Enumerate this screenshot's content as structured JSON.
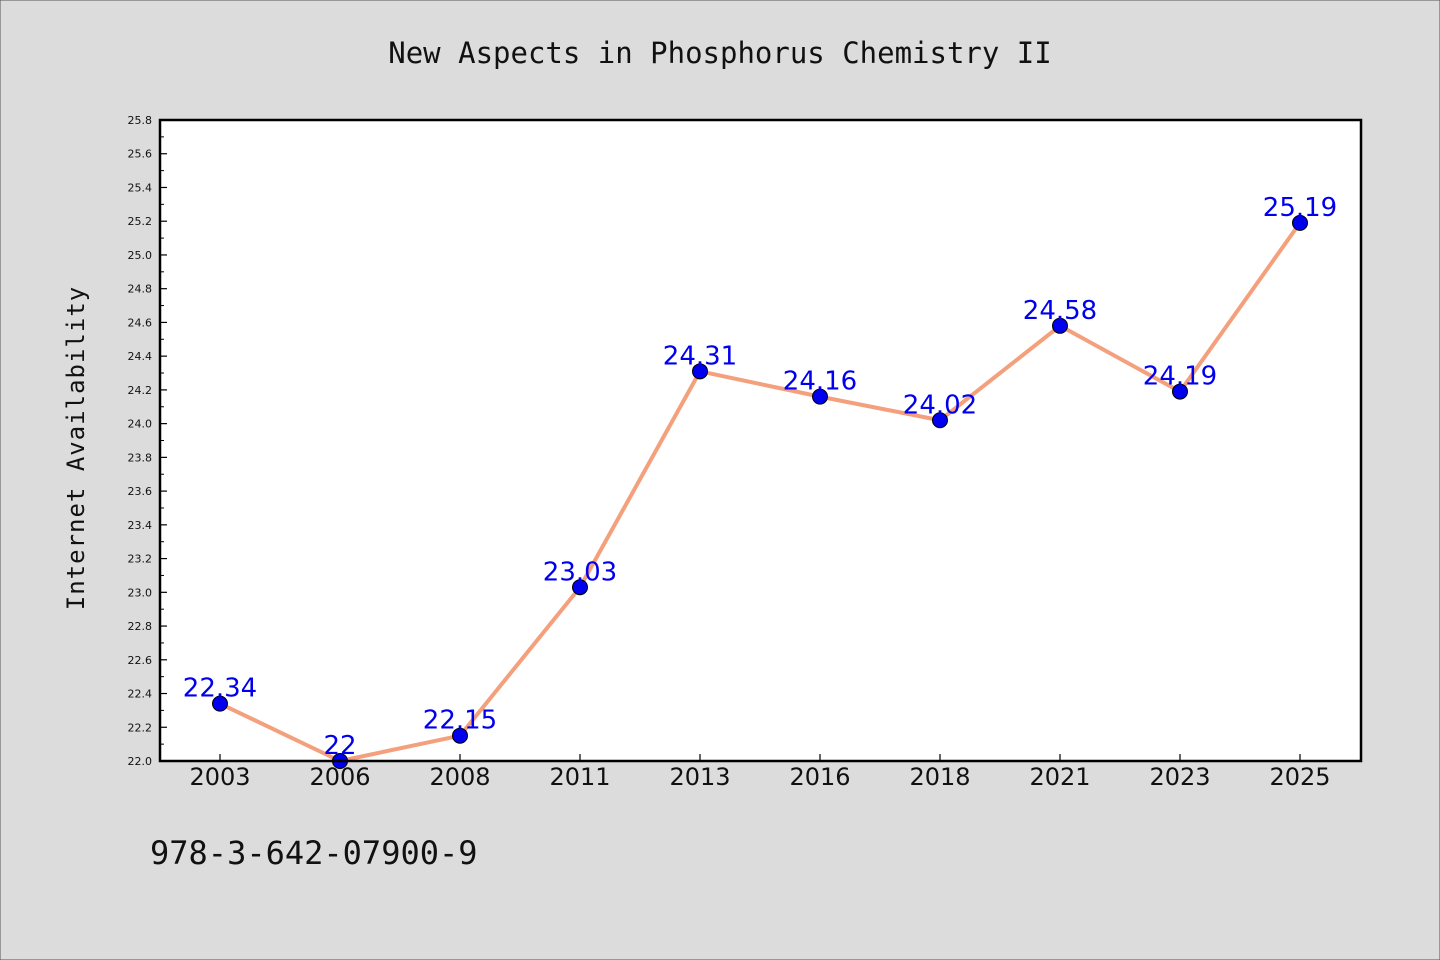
{
  "chart_data": {
    "type": "line",
    "title": "New Aspects in Phosphorus Chemistry II",
    "xlabel": "",
    "ylabel": "Internet Availability",
    "categories": [
      "2003",
      "2006",
      "2008",
      "2011",
      "2013",
      "2016",
      "2018",
      "2021",
      "2023",
      "2025"
    ],
    "values": [
      22.34,
      22.0,
      22.15,
      23.03,
      24.31,
      24.16,
      24.02,
      24.58,
      24.19,
      25.19
    ],
    "data_labels": [
      "22.34",
      "22",
      "22.15",
      "23.03",
      "24.31",
      "24.16",
      "24.02",
      "24.58",
      "24.19",
      "25.19"
    ],
    "ylim": [
      22.0,
      25.8
    ],
    "y_ticks": [
      "22.0",
      "22.2",
      "22.4",
      "22.6",
      "22.8",
      "23.0",
      "23.2",
      "23.4",
      "23.6",
      "23.8",
      "24.0",
      "24.2",
      "24.4",
      "24.6",
      "24.8",
      "25.0",
      "25.2",
      "25.4",
      "25.6",
      "25.8"
    ],
    "grid": false,
    "legend": "none",
    "colors": {
      "line": "#f4a07c",
      "marker": "#0000ee",
      "data_label": "#0000ee",
      "background": "#dcdcdc",
      "plot_background": "#ffffff"
    }
  },
  "footer": {
    "text": "978-3-642-07900-9"
  }
}
